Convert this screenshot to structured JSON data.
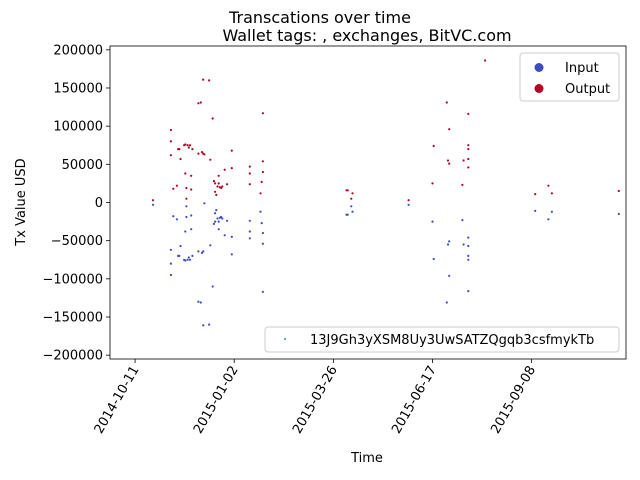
{
  "chart_data": {
    "type": "scatter",
    "title": "Transcations over time",
    "subtitle": "Wallet tags: , exchanges, BitVC.com",
    "xlabel": "Time",
    "ylabel": "Tx Value USD",
    "xlim": [
      "2014-09-20",
      "2015-11-26"
    ],
    "ylim": [
      -205000,
      205000
    ],
    "x_ticks": [
      "2014-10-11",
      "2015-01-02",
      "2015-03-26",
      "2015-06-17",
      "2015-09-08"
    ],
    "y_ticks": [
      -200000,
      -150000,
      -100000,
      -50000,
      0,
      50000,
      100000,
      150000,
      200000
    ],
    "y_tick_labels": [
      "−200000",
      "−150000",
      "−100000",
      "−50000",
      "0",
      "50000",
      "100000",
      "150000",
      "200000"
    ],
    "grid": false,
    "colors": {
      "Input": "#3b4cc0",
      "Output": "#b40426",
      "Wallet": "#2a9d8f"
    },
    "legend_classes": {
      "location": "top-right",
      "entries": [
        "Input",
        "Output"
      ]
    },
    "legend_series": {
      "location": "lower-right",
      "entries": [
        "13J9Gh3yXSM8Uy3UwSATZQgqb3csfmykTb"
      ]
    },
    "series": [
      {
        "name": "Output",
        "points": [
          [
            "2014-10-26",
            3000
          ],
          [
            "2014-11-10",
            95000
          ],
          [
            "2014-11-10",
            80000
          ],
          [
            "2014-11-10",
            62000
          ],
          [
            "2014-11-12",
            18000
          ],
          [
            "2014-11-15",
            22000
          ],
          [
            "2014-11-16",
            70000
          ],
          [
            "2014-11-17",
            70000
          ],
          [
            "2014-11-18",
            57000
          ],
          [
            "2014-11-21",
            75000
          ],
          [
            "2014-11-22",
            76000
          ],
          [
            "2014-11-22",
            38000
          ],
          [
            "2014-11-23",
            5000
          ],
          [
            "2014-11-23",
            19000
          ],
          [
            "2014-11-24",
            75000
          ],
          [
            "2014-11-25",
            72000
          ],
          [
            "2014-11-26",
            75000
          ],
          [
            "2014-11-27",
            35000
          ],
          [
            "2014-11-27",
            17000
          ],
          [
            "2014-11-28",
            70000
          ],
          [
            "2014-12-03",
            130000
          ],
          [
            "2014-12-03",
            64000
          ],
          [
            "2014-12-05",
            131000
          ],
          [
            "2014-12-06",
            66000
          ],
          [
            "2014-12-07",
            161000
          ],
          [
            "2014-12-07",
            64000
          ],
          [
            "2014-12-08",
            63000
          ],
          [
            "2014-12-12",
            160000
          ],
          [
            "2014-12-13",
            56000
          ],
          [
            "2014-12-15",
            110000
          ],
          [
            "2014-12-16",
            28000
          ],
          [
            "2014-12-17",
            25000
          ],
          [
            "2014-12-17",
            14000
          ],
          [
            "2014-12-18",
            10000
          ],
          [
            "2014-12-19",
            21000
          ],
          [
            "2014-12-20",
            35000
          ],
          [
            "2014-12-20",
            25000
          ],
          [
            "2014-12-21",
            20000
          ],
          [
            "2014-12-22",
            19000
          ],
          [
            "2014-12-23",
            21000
          ],
          [
            "2014-12-25",
            43000
          ],
          [
            "2014-12-27",
            24000
          ],
          [
            "2014-12-31",
            45000
          ],
          [
            "2014-12-31",
            68000
          ],
          [
            "2015-01-15",
            47000
          ],
          [
            "2015-01-15",
            38000
          ],
          [
            "2015-01-15",
            24000
          ],
          [
            "2015-01-24",
            12000
          ],
          [
            "2015-01-25",
            27000
          ],
          [
            "2015-01-26",
            54000
          ],
          [
            "2015-01-26",
            40000
          ],
          [
            "2015-01-26",
            117000
          ],
          [
            "2015-04-06",
            16000
          ],
          [
            "2015-04-07",
            16000
          ],
          [
            "2015-04-10",
            5000
          ],
          [
            "2015-04-11",
            12000
          ],
          [
            "2015-05-28",
            3000
          ],
          [
            "2015-06-17",
            25000
          ],
          [
            "2015-06-18",
            74000
          ],
          [
            "2015-06-29",
            131000
          ],
          [
            "2015-06-30",
            55000
          ],
          [
            "2015-07-01",
            51000
          ],
          [
            "2015-07-01",
            96000
          ],
          [
            "2015-07-12",
            23000
          ],
          [
            "2015-07-13",
            55000
          ],
          [
            "2015-07-17",
            116000
          ],
          [
            "2015-07-17",
            75000
          ],
          [
            "2015-07-17",
            70000
          ],
          [
            "2015-07-17",
            57000
          ],
          [
            "2015-07-17",
            46000
          ],
          [
            "2015-07-31",
            186000
          ],
          [
            "2015-09-11",
            11000
          ],
          [
            "2015-09-22",
            22000
          ],
          [
            "2015-09-25",
            12000
          ],
          [
            "2015-11-20",
            15000
          ]
        ]
      },
      {
        "name": "Input",
        "points": [
          [
            "2014-10-26",
            -3000
          ],
          [
            "2014-11-10",
            -95000
          ],
          [
            "2014-11-10",
            -80000
          ],
          [
            "2014-11-10",
            -62000
          ],
          [
            "2014-11-12",
            -18000
          ],
          [
            "2014-11-15",
            -22000
          ],
          [
            "2014-11-16",
            -70000
          ],
          [
            "2014-11-17",
            -70000
          ],
          [
            "2014-11-18",
            -57000
          ],
          [
            "2014-11-21",
            -75000
          ],
          [
            "2014-11-22",
            -76000
          ],
          [
            "2014-11-22",
            -38000
          ],
          [
            "2014-11-23",
            -5000
          ],
          [
            "2014-11-23",
            -19000
          ],
          [
            "2014-11-24",
            -75000
          ],
          [
            "2014-11-25",
            -72000
          ],
          [
            "2014-11-26",
            -75000
          ],
          [
            "2014-11-27",
            -35000
          ],
          [
            "2014-11-27",
            -17000
          ],
          [
            "2014-11-28",
            -70000
          ],
          [
            "2014-12-03",
            -130000
          ],
          [
            "2014-12-03",
            -64000
          ],
          [
            "2014-12-05",
            -131000
          ],
          [
            "2014-12-06",
            -66000
          ],
          [
            "2014-12-07",
            -161000
          ],
          [
            "2014-12-07",
            -64000
          ],
          [
            "2014-12-08",
            -1000
          ],
          [
            "2014-12-12",
            -160000
          ],
          [
            "2014-12-13",
            -56000
          ],
          [
            "2014-12-15",
            -110000
          ],
          [
            "2014-12-16",
            -28000
          ],
          [
            "2014-12-17",
            -25000
          ],
          [
            "2014-12-17",
            -14000
          ],
          [
            "2014-12-18",
            -10000
          ],
          [
            "2014-12-19",
            -21000
          ],
          [
            "2014-12-20",
            -35000
          ],
          [
            "2014-12-20",
            -25000
          ],
          [
            "2014-12-21",
            -20000
          ],
          [
            "2014-12-22",
            -19000
          ],
          [
            "2014-12-23",
            -21000
          ],
          [
            "2014-12-25",
            -43000
          ],
          [
            "2014-12-27",
            -24000
          ],
          [
            "2014-12-31",
            -45000
          ],
          [
            "2014-12-31",
            -68000
          ],
          [
            "2015-01-15",
            -47000
          ],
          [
            "2015-01-15",
            -38000
          ],
          [
            "2015-01-15",
            -24000
          ],
          [
            "2015-01-24",
            -12000
          ],
          [
            "2015-01-25",
            -27000
          ],
          [
            "2015-01-26",
            -54000
          ],
          [
            "2015-01-26",
            -40000
          ],
          [
            "2015-01-26",
            -117000
          ],
          [
            "2015-04-06",
            -16000
          ],
          [
            "2015-04-07",
            -16000
          ],
          [
            "2015-04-10",
            -5000
          ],
          [
            "2015-04-11",
            -12000
          ],
          [
            "2015-05-28",
            -3000
          ],
          [
            "2015-06-17",
            -25000
          ],
          [
            "2015-06-18",
            -74000
          ],
          [
            "2015-06-29",
            -131000
          ],
          [
            "2015-06-30",
            -55000
          ],
          [
            "2015-07-01",
            -51000
          ],
          [
            "2015-07-01",
            -96000
          ],
          [
            "2015-07-12",
            -23000
          ],
          [
            "2015-07-13",
            -55000
          ],
          [
            "2015-07-17",
            -116000
          ],
          [
            "2015-07-17",
            -75000
          ],
          [
            "2015-07-17",
            -70000
          ],
          [
            "2015-07-17",
            -57000
          ],
          [
            "2015-07-17",
            -46000
          ],
          [
            "2015-09-11",
            -11000
          ],
          [
            "2015-09-22",
            -22000
          ],
          [
            "2015-09-25",
            -12000
          ],
          [
            "2015-11-20",
            -15000
          ]
        ]
      }
    ]
  }
}
